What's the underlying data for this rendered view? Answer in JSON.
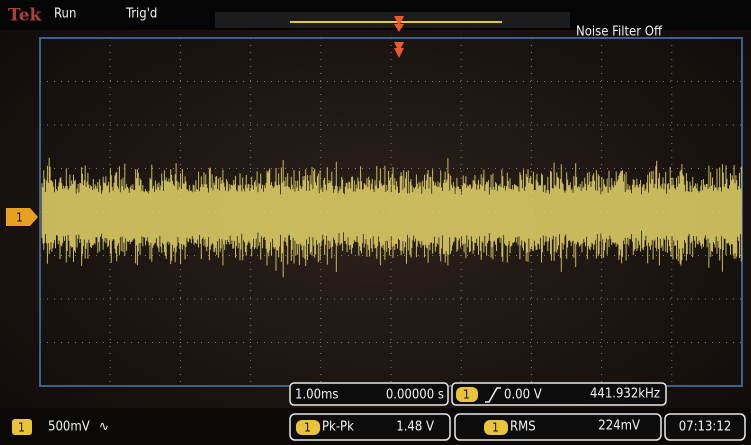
{
  "header": {
    "brand": "Tek",
    "status": "Run",
    "trigger_status": "Trig'd",
    "noise_filter": "Noise Filter Off"
  },
  "channel_marker": "1",
  "timebase": {
    "scale": "1.00ms",
    "position": "0.00000 s"
  },
  "trigger": {
    "channel": "1",
    "level": "0.00 V",
    "frequency": "441.932kHz"
  },
  "channel": {
    "number": "1",
    "scale": "500mV",
    "coupling": "∿"
  },
  "measurements": [
    {
      "channel": "1",
      "name": "Pk-Pk",
      "value": "1.48 V"
    },
    {
      "channel": "1",
      "name": "RMS",
      "value": "224mV"
    }
  ],
  "clock": "07:13:12"
}
